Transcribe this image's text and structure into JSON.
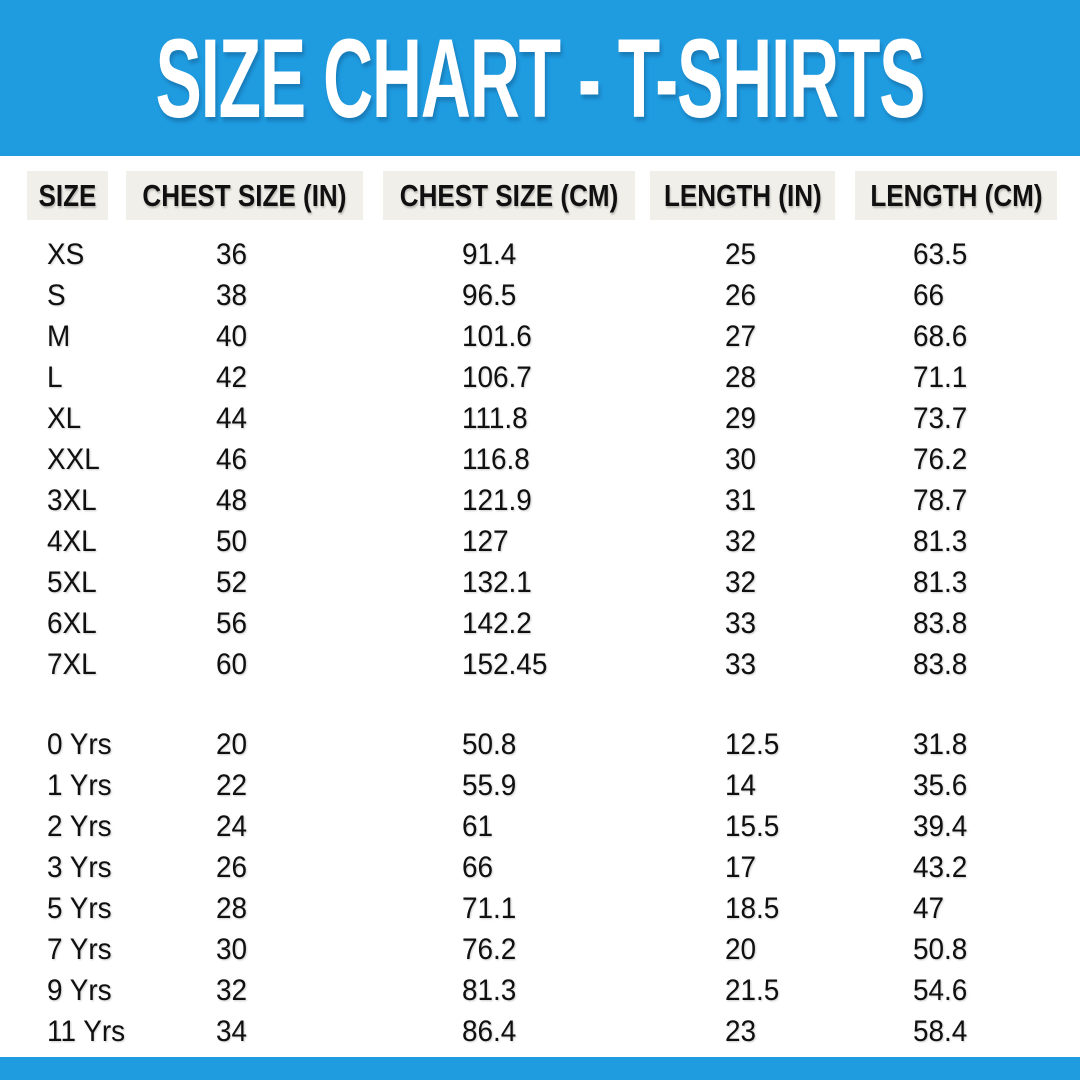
{
  "title": "SIZE CHART - T-SHIRTS",
  "colors": {
    "banner_blue": "#1f9be0",
    "header_chip_bg": "#f0efe9",
    "text": "#101010",
    "page_bg": "#ffffff"
  },
  "table": {
    "columns": [
      "SIZE",
      "CHEST SIZE (IN)",
      "CHEST SIZE (CM)",
      "LENGTH (IN)",
      "LENGTH (CM)"
    ],
    "adult": [
      [
        "XS",
        "36",
        "91.4",
        "25",
        "63.5"
      ],
      [
        "S",
        "38",
        "96.5",
        "26",
        "66"
      ],
      [
        "M",
        "40",
        "101.6",
        "27",
        "68.6"
      ],
      [
        "L",
        "42",
        "106.7",
        "28",
        "71.1"
      ],
      [
        "XL",
        "44",
        "111.8",
        "29",
        "73.7"
      ],
      [
        "XXL",
        "46",
        "116.8",
        "30",
        "76.2"
      ],
      [
        "3XL",
        "48",
        "121.9",
        "31",
        "78.7"
      ],
      [
        "4XL",
        "50",
        "127",
        "32",
        "81.3"
      ],
      [
        "5XL",
        "52",
        "132.1",
        "32",
        "81.3"
      ],
      [
        "6XL",
        "56",
        "142.2",
        "33",
        "83.8"
      ],
      [
        "7XL",
        "60",
        "152.45",
        "33",
        "83.8"
      ]
    ],
    "kids": [
      [
        "0 Yrs",
        "20",
        "50.8",
        "12.5",
        "31.8"
      ],
      [
        "1 Yrs",
        "22",
        "55.9",
        "14",
        "35.6"
      ],
      [
        "2 Yrs",
        "24",
        "61",
        "15.5",
        "39.4"
      ],
      [
        "3 Yrs",
        "26",
        "66",
        "17",
        "43.2"
      ],
      [
        "5 Yrs",
        "28",
        "71.1",
        "18.5",
        "47"
      ],
      [
        "7 Yrs",
        "30",
        "76.2",
        "20",
        "50.8"
      ],
      [
        "9 Yrs",
        "32",
        "81.3",
        "21.5",
        "54.6"
      ],
      [
        "11 Yrs",
        "34",
        "86.4",
        "23",
        "58.4"
      ]
    ]
  }
}
